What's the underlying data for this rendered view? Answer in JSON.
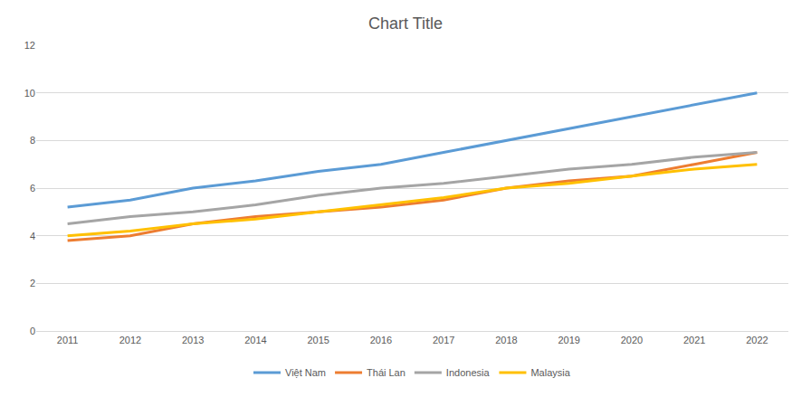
{
  "chart_data": {
    "type": "line",
    "title": "Chart Title",
    "categories": [
      "2011",
      "2012",
      "2013",
      "2014",
      "2015",
      "2016",
      "2017",
      "2018",
      "2019",
      "2020",
      "2021",
      "2022"
    ],
    "series": [
      {
        "name": "Việt Nam",
        "color": "#5b9bd5",
        "values": [
          5.2,
          5.5,
          6.0,
          6.3,
          6.7,
          7.0,
          7.5,
          8.0,
          8.5,
          9.0,
          9.5,
          10.0
        ]
      },
      {
        "name": "Thái Lan",
        "color": "#ed7d31",
        "values": [
          3.8,
          4.0,
          4.5,
          4.8,
          5.0,
          5.2,
          5.5,
          6.0,
          6.3,
          6.5,
          7.0,
          7.5
        ]
      },
      {
        "name": "Indonesia",
        "color": "#a5a5a5",
        "values": [
          4.5,
          4.8,
          5.0,
          5.3,
          5.7,
          6.0,
          6.2,
          6.5,
          6.8,
          7.0,
          7.3,
          7.5
        ]
      },
      {
        "name": "Malaysia",
        "color": "#ffc000",
        "values": [
          4.0,
          4.2,
          4.5,
          4.7,
          5.0,
          5.3,
          5.6,
          6.0,
          6.2,
          6.5,
          6.8,
          7.0
        ]
      }
    ],
    "ylim": [
      0,
      12
    ],
    "yticks": [
      0,
      2,
      4,
      6,
      8,
      10,
      12
    ],
    "grid": true,
    "legend": "bottom"
  }
}
